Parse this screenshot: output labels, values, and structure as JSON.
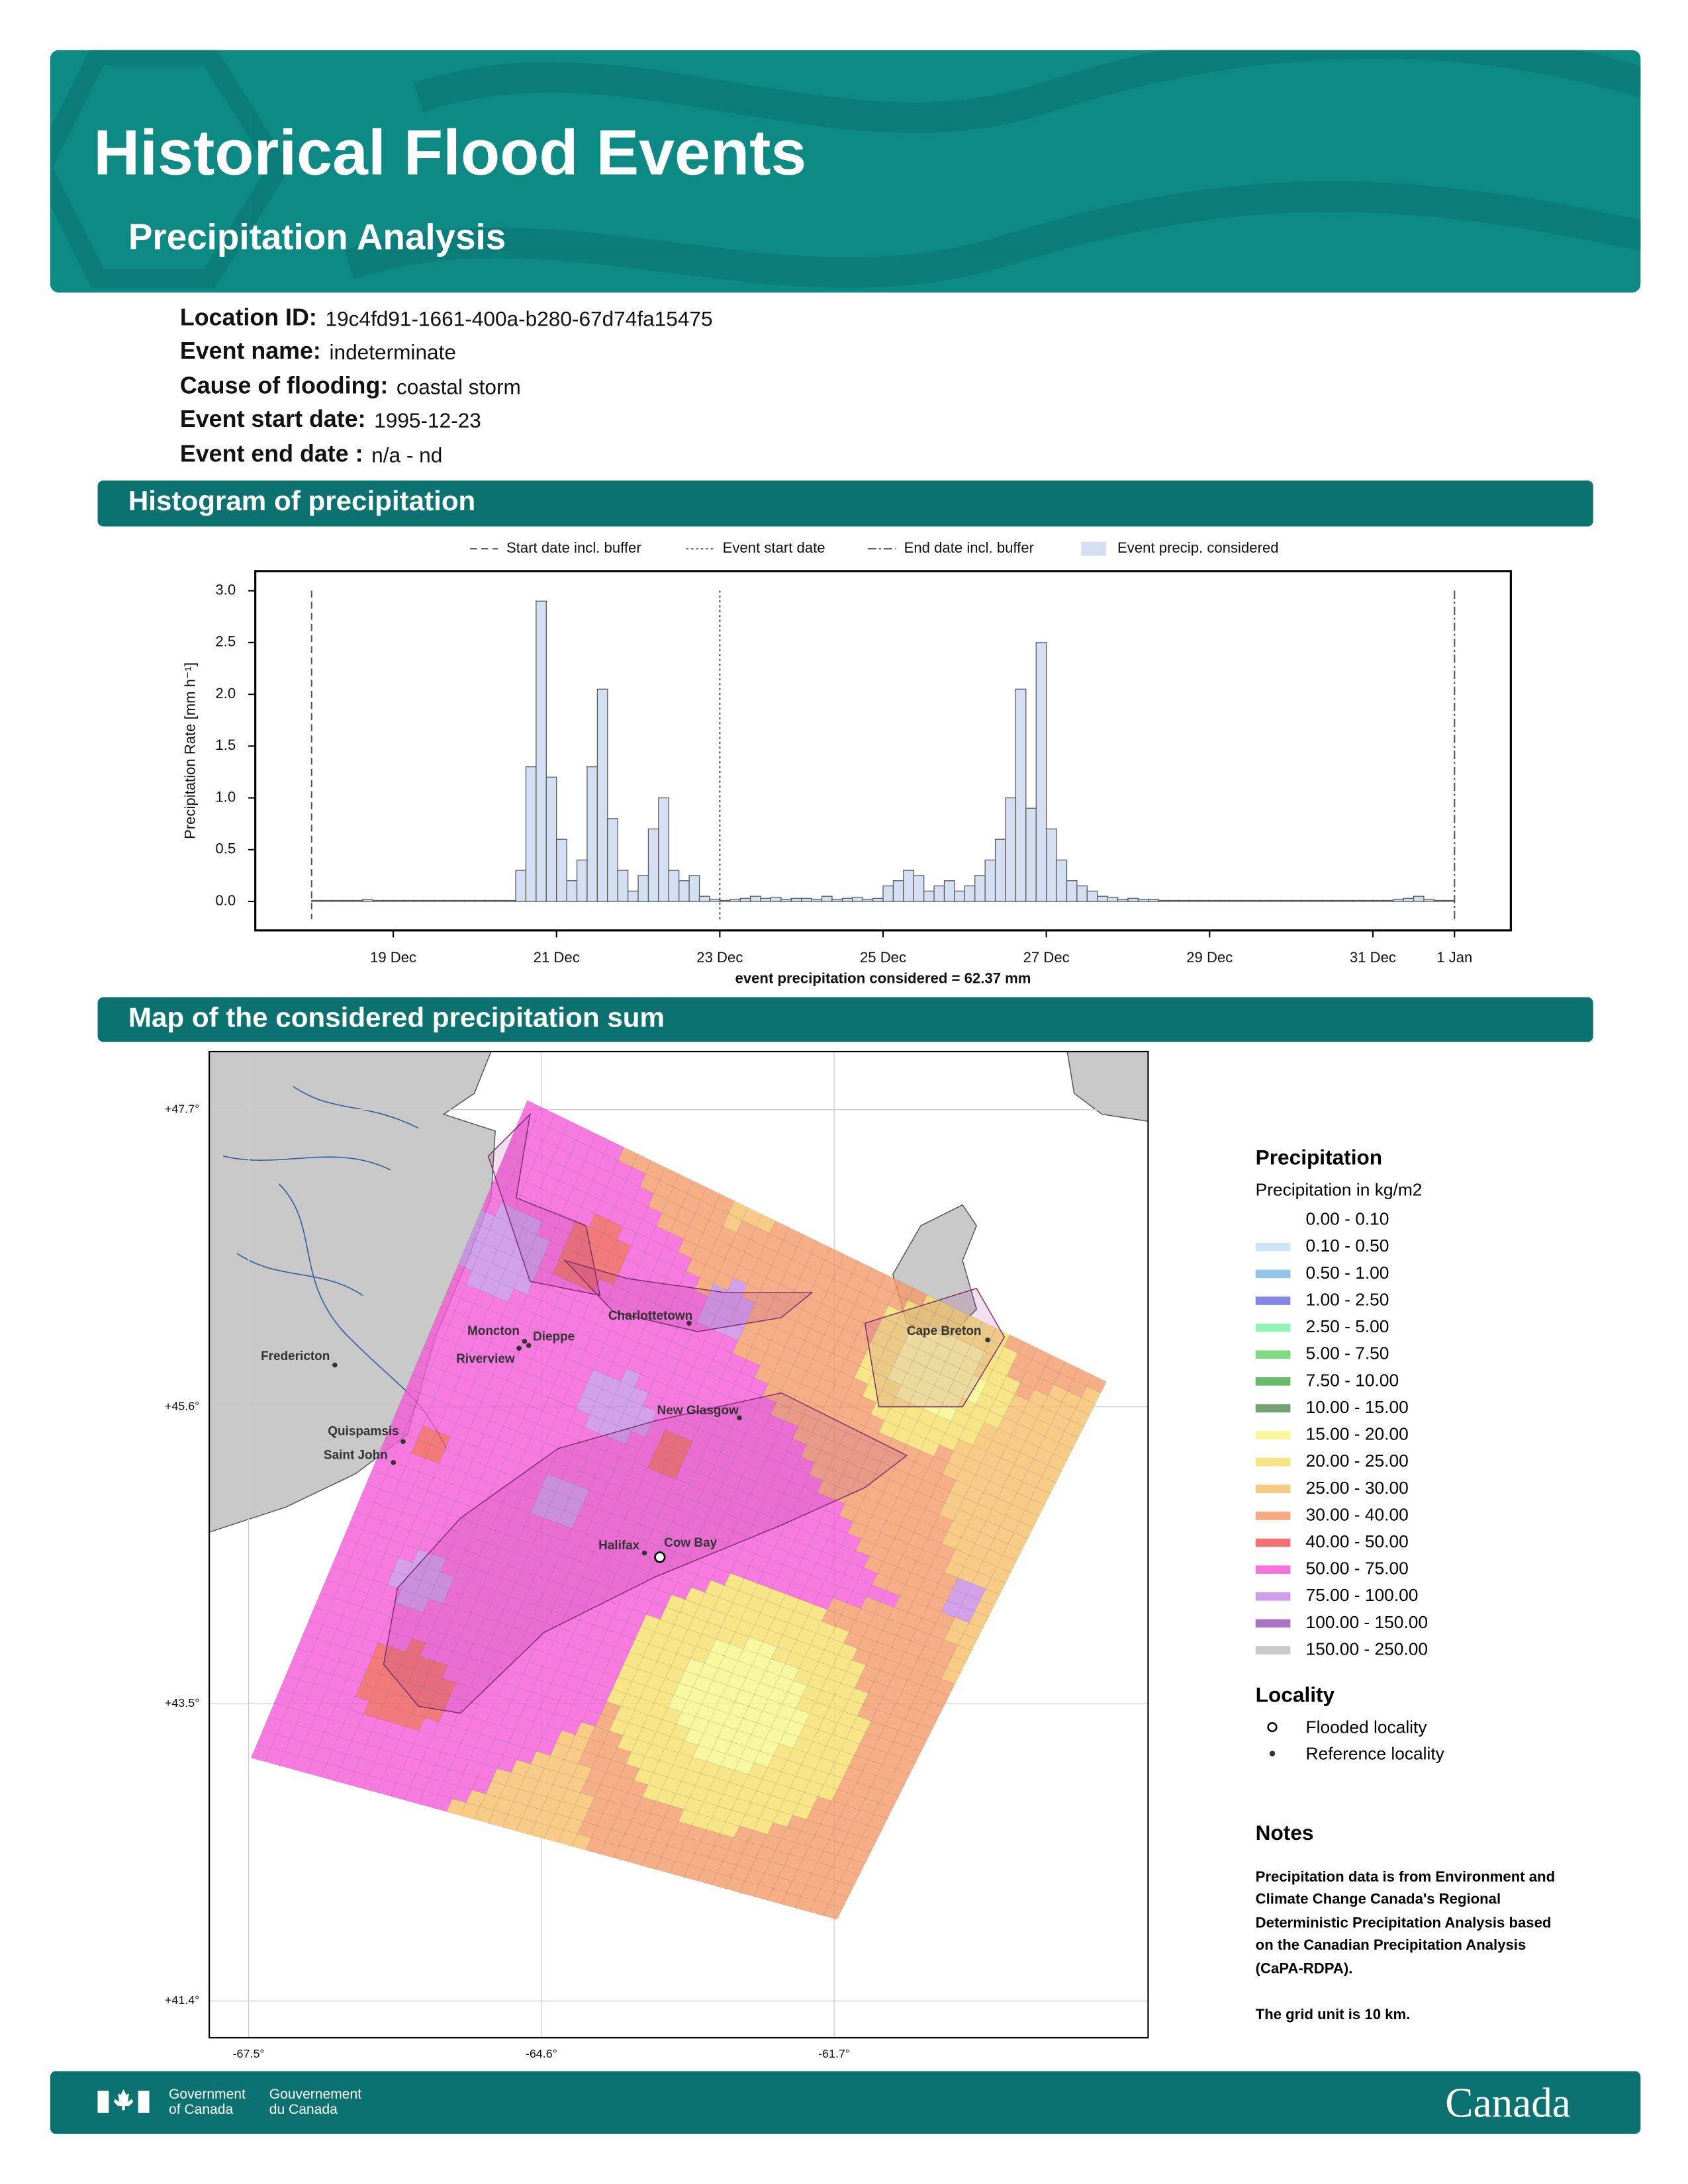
{
  "header": {
    "title": "Historical Flood Events",
    "subtitle": "Precipitation Analysis"
  },
  "fields": [
    {
      "label": "Location ID:",
      "value": "19c4fd91-1661-400a-b280-67d74fa15475"
    },
    {
      "label": "Event name:",
      "value": "indeterminate"
    },
    {
      "label": "Cause of flooding:",
      "value": "coastal storm"
    },
    {
      "label": "Event start date:",
      "value": "1995-12-23"
    },
    {
      "label": "Event end date :",
      "value": "n/a - nd"
    }
  ],
  "sections": [
    "Histogram of precipitation",
    "Map of the considered precipitation sum"
  ],
  "chart_data": {
    "type": "histogram",
    "ylabel": "Precipitation Rate [mm h⁻¹]",
    "xlabel": "event precipitation considered = 62.37 mm",
    "series_name": "Event precip. considered",
    "color": "#d4e0f2",
    "edgecolor": "#555555",
    "vlines": [
      {
        "name": "Start date incl. buffer",
        "x": 18,
        "style": "dashed"
      },
      {
        "name": "Event start date",
        "x": 23,
        "style": "dotted"
      },
      {
        "name": "End date incl. buffer",
        "x": 32,
        "style": "dashdot"
      }
    ],
    "bins": [
      18,
      18.125,
      18.25,
      18.375,
      18.5,
      18.625,
      18.75,
      18.875,
      19,
      19.125,
      19.25,
      19.375,
      19.5,
      19.625,
      19.75,
      19.875,
      20,
      20.125,
      20.25,
      20.375,
      20.5,
      20.625,
      20.75,
      20.875,
      21,
      21.125,
      21.25,
      21.375,
      21.5,
      21.625,
      21.75,
      21.875,
      22,
      22.125,
      22.25,
      22.375,
      22.5,
      22.625,
      22.75,
      22.875,
      23,
      23.125,
      23.25,
      23.375,
      23.5,
      23.625,
      23.75,
      23.875,
      24,
      24.125,
      24.25,
      24.375,
      24.5,
      24.625,
      24.75,
      24.875,
      25,
      25.125,
      25.25,
      25.375,
      25.5,
      25.625,
      25.75,
      25.875,
      26,
      26.125,
      26.25,
      26.375,
      26.5,
      26.625,
      26.75,
      26.875,
      27,
      27.125,
      27.25,
      27.375,
      27.5,
      27.625,
      27.75,
      27.875,
      28,
      28.125,
      28.25,
      28.375,
      28.5,
      28.625,
      28.75,
      28.875,
      29,
      29.125,
      29.25,
      29.375,
      29.5,
      29.625,
      29.75,
      29.875,
      30,
      30.125,
      30.25,
      30.375,
      30.5,
      30.625,
      30.75,
      30.875,
      31,
      31.125,
      31.25,
      31.375,
      31.5,
      31.625,
      31.75,
      31.875,
      32
    ],
    "values": [
      0.01,
      0.01,
      0.01,
      0.01,
      0.01,
      0.02,
      0.01,
      0.01,
      0.01,
      0.01,
      0.01,
      0.01,
      0.01,
      0.01,
      0.01,
      0.01,
      0.01,
      0.01,
      0.01,
      0.01,
      0.3,
      1.3,
      2.9,
      1.2,
      0.6,
      0.2,
      0.4,
      1.3,
      2.05,
      0.8,
      0.3,
      0.1,
      0.25,
      0.7,
      1.0,
      0.3,
      0.2,
      0.25,
      0.05,
      0.02,
      0.01,
      0.02,
      0.03,
      0.05,
      0.03,
      0.04,
      0.02,
      0.03,
      0.03,
      0.02,
      0.05,
      0.02,
      0.03,
      0.04,
      0.02,
      0.03,
      0.15,
      0.2,
      0.3,
      0.25,
      0.1,
      0.15,
      0.2,
      0.1,
      0.15,
      0.25,
      0.4,
      0.6,
      1.0,
      2.05,
      0.9,
      2.5,
      0.7,
      0.4,
      0.2,
      0.15,
      0.1,
      0.05,
      0.04,
      0.02,
      0.03,
      0.02,
      0.02,
      0.01,
      0.01,
      0.01,
      0.01,
      0.01,
      0.01,
      0.01,
      0.01,
      0.01,
      0.01,
      0.01,
      0.01,
      0.01,
      0.01,
      0.01,
      0.01,
      0.01,
      0.01,
      0.01,
      0.01,
      0.01,
      0.01,
      0.01,
      0.02,
      0.03,
      0.05,
      0.02,
      0.01,
      0.01
    ],
    "xlim": [
      17.31,
      32.69
    ],
    "ylim": [
      -0.28,
      3.19
    ],
    "yticks": [
      {
        "value": 0,
        "label": "0.0"
      },
      0.5,
      {
        "value": 1,
        "label": "1.0"
      },
      1.5,
      {
        "value": 2,
        "label": "2.0"
      },
      2.5,
      {
        "value": 3,
        "label": "3.0"
      }
    ],
    "xticks": [
      {
        "value": 19,
        "label": "19 Dec"
      },
      {
        "value": 21,
        "label": "21 Dec"
      },
      {
        "value": 23,
        "label": "23 Dec"
      },
      {
        "value": 25,
        "label": "25 Dec"
      },
      {
        "value": 27,
        "label": "27 Dec"
      },
      {
        "value": 29,
        "label": "29 Dec"
      },
      {
        "value": 31,
        "label": "31 Dec"
      },
      {
        "value": 32,
        "label": "1 Jan"
      }
    ]
  },
  "map": {
    "latlim": [
      41.14,
      48.11
    ],
    "lonlim": [
      -67.89,
      -58.59
    ],
    "lat_ticks": [
      {
        "value": 47.7,
        "label": "+47.7°"
      },
      {
        "value": 45.6,
        "label": "+45.6°"
      },
      {
        "value": 43.5,
        "label": "+43.5°"
      },
      {
        "value": 41.4,
        "label": "+41.4°"
      }
    ],
    "lon_ticks": [
      {
        "value": -67.5,
        "label": "-67.5°"
      },
      {
        "value": -64.6,
        "label": "-64.6°"
      },
      {
        "value": -61.7,
        "label": "-61.7°"
      }
    ],
    "localities": [
      "Charlottetown",
      "Moncton",
      "Dieppe",
      "Riverview",
      "Fredericton",
      "New Glasgow",
      "Cape Breton",
      "Quispamsis",
      "Saint John",
      "Halifax",
      "Cow Bay"
    ]
  },
  "legend": {
    "title": "Precipitation",
    "subtitle": "Precipitation in kg/m2",
    "items": [
      {
        "label": "0.00 - 0.10",
        "color": "#ffffff"
      },
      {
        "label": "0.10 - 0.50",
        "color": "#c6e0f5"
      },
      {
        "label": "0.50 - 1.00",
        "color": "#7fb8e8"
      },
      {
        "label": "1.00 - 2.50",
        "color": "#7070e0"
      },
      {
        "label": "2.50 - 5.00",
        "color": "#80f0a8"
      },
      {
        "label": "5.00 - 7.50",
        "color": "#6ad56a"
      },
      {
        "label": "7.50 - 10.00",
        "color": "#4caf50"
      },
      {
        "label": "10.00 - 15.00",
        "color": "#5e8f5e"
      },
      {
        "label": "15.00 - 20.00",
        "color": "#f7f78a"
      },
      {
        "label": "20.00 - 25.00",
        "color": "#f7df6a"
      },
      {
        "label": "25.00 - 30.00",
        "color": "#f7bf6a"
      },
      {
        "label": "30.00 - 40.00",
        "color": "#f59a6a"
      },
      {
        "label": "40.00 - 50.00",
        "color": "#ef5a5a"
      },
      {
        "label": "50.00 - 75.00",
        "color": "#f55ad8"
      },
      {
        "label": "75.00 - 100.00",
        "color": "#c88ae6"
      },
      {
        "label": "100.00 - 150.00",
        "color": "#9a5ab8"
      },
      {
        "label": "150.00 - 250.00",
        "color": "#c0c0c0"
      }
    ]
  },
  "locality_legend": {
    "title": "Locality",
    "items": [
      "Flooded locality",
      "Reference locality"
    ]
  },
  "notes": {
    "title": "Notes",
    "lines": [
      "Precipitation data is from Environment and",
      "Climate Change Canada's Regional",
      "Deterministic Precipitation Analysis based",
      "on the Canadian Precipitation Analysis",
      "(CaPA-RDPA).",
      "The grid unit is 10 km."
    ]
  },
  "footer": {
    "en": [
      "Government",
      "of Canada"
    ],
    "fr": [
      "Gouvernement",
      "du Canada"
    ],
    "wordmark": "Canada"
  }
}
